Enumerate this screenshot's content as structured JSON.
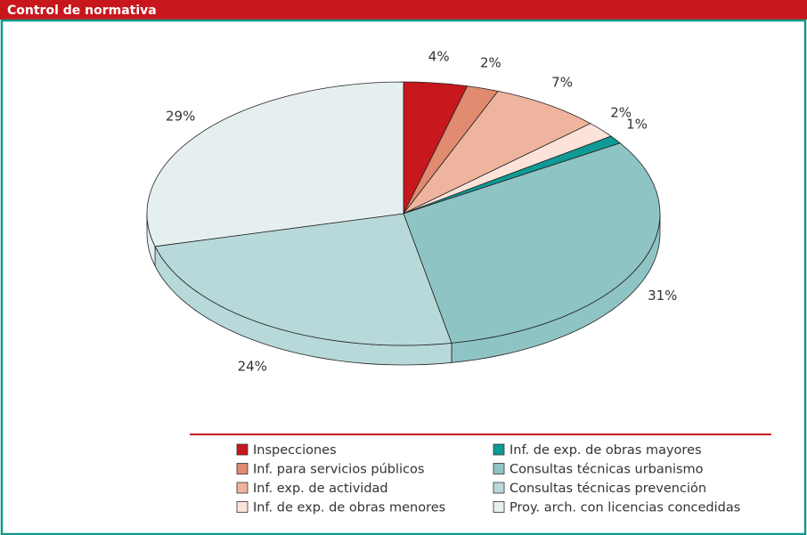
{
  "chart_data": {
    "type": "pie3d",
    "title": "Control de normativa",
    "categories": [
      "Inspecciones",
      "Inf. para servicios públicos",
      "Inf. exp. de actividad",
      "Inf. de exp. de obras menores",
      "Inf. de exp. de obras mayores",
      "Consultas técnicas urbanismo",
      "Consultas técnicas prevención",
      "Proy. arch. con licencias concedidas"
    ],
    "values": [
      4,
      2,
      7,
      2,
      1,
      31,
      24,
      29
    ],
    "value_labels": [
      "4%",
      "2%",
      "7%",
      "2%",
      "1%",
      "31%",
      "24%",
      "29%"
    ],
    "colors": [
      "#c8161d",
      "#e08a70",
      "#eeb49e",
      "#fbe3da",
      "#0f9a96",
      "#8fc4c4",
      "#b8d9da",
      "#e6eff0"
    ]
  }
}
